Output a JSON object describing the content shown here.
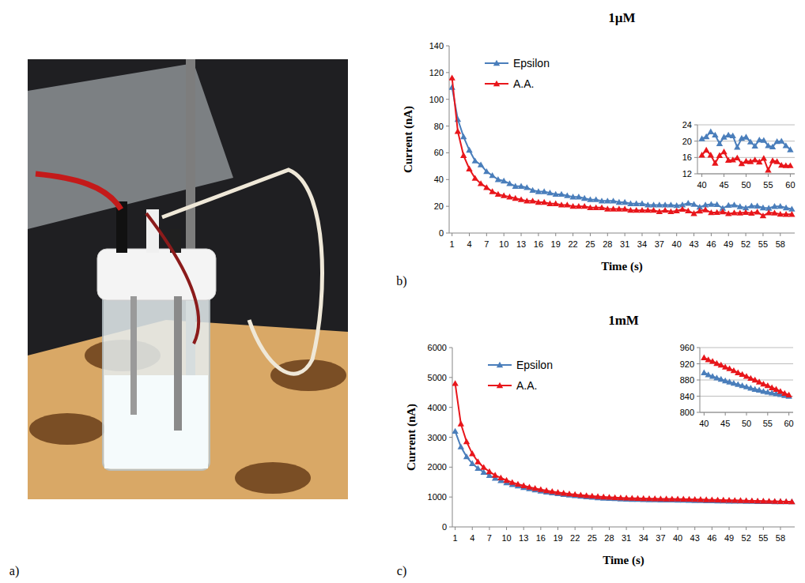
{
  "photo": {
    "label": "a)"
  },
  "chart_data": [
    {
      "type": "line",
      "panel_label": "b)",
      "title": "1µM",
      "x_label": "Time (s)",
      "y_label": "Current (nA)",
      "x": [
        1,
        2,
        3,
        4,
        5,
        6,
        7,
        8,
        9,
        10,
        11,
        12,
        13,
        14,
        15,
        16,
        17,
        18,
        19,
        20,
        21,
        22,
        23,
        24,
        25,
        26,
        27,
        28,
        29,
        30,
        31,
        32,
        33,
        34,
        35,
        36,
        37,
        38,
        39,
        40,
        41,
        42,
        43,
        44,
        45,
        46,
        47,
        48,
        49,
        50,
        51,
        52,
        53,
        54,
        55,
        56,
        57,
        58,
        59,
        60
      ],
      "xlim": [
        0.5,
        60.5
      ],
      "xticks": [
        1,
        4,
        7,
        10,
        13,
        16,
        19,
        22,
        25,
        28,
        31,
        34,
        37,
        40,
        43,
        46,
        49,
        52,
        55,
        58
      ],
      "ylim": [
        0,
        140
      ],
      "yticks": [
        0,
        20,
        40,
        60,
        80,
        100,
        120,
        140
      ],
      "grid": false,
      "legend": "top-left",
      "series": [
        {
          "name": "Epsilon",
          "color": "#4a7ebb",
          "marker": "triangle",
          "line_style": "solid",
          "values": [
            109,
            85,
            72,
            62,
            54,
            51,
            46,
            43,
            40,
            39,
            37,
            35,
            35,
            34,
            32,
            31,
            31,
            30,
            29,
            29,
            28,
            27,
            27,
            26,
            25,
            25,
            24,
            24,
            24,
            23,
            23,
            22,
            22,
            22,
            21,
            21,
            21,
            21,
            21,
            20.6,
            21.1,
            22.3,
            21.5,
            19.4,
            21.0,
            21.5,
            21.3,
            18.5,
            20.7,
            21.0,
            19.8,
            18.8,
            20.3,
            20.2,
            18.9,
            18.6,
            19.9,
            20.0,
            18.9,
            17.9
          ]
        },
        {
          "name": "A.A.",
          "color": "#e8161b",
          "marker": "triangle",
          "line_style": "solid",
          "values": [
            116,
            76,
            58,
            48,
            41,
            37,
            34,
            31,
            29,
            28,
            27,
            26,
            25,
            24,
            24,
            23,
            23,
            22,
            22,
            21,
            21,
            20,
            20,
            20,
            19,
            19,
            19,
            18,
            18,
            18,
            18,
            17,
            17,
            17,
            17,
            17,
            16,
            17,
            16,
            16.6,
            17.8,
            16.6,
            14.6,
            16.5,
            17.4,
            15.3,
            15.4,
            15.9,
            14.5,
            15.1,
            15.0,
            15.4,
            14.9,
            15.8,
            12.9,
            15.2,
            15.0,
            14.1,
            14.0,
            14.0
          ]
        }
      ],
      "inset": {
        "type": "line",
        "x": [
          40,
          41,
          42,
          43,
          44,
          45,
          46,
          47,
          48,
          49,
          50,
          51,
          52,
          53,
          54,
          55,
          56,
          57,
          58,
          59,
          60
        ],
        "xlim": [
          39,
          61
        ],
        "xticks": [
          40,
          45,
          50,
          55,
          60
        ],
        "ylim": [
          12,
          24
        ],
        "yticks": [
          12,
          16,
          20,
          24
        ],
        "grid": true,
        "series": [
          {
            "color": "#4a7ebb",
            "marker": "triangle",
            "line_style": "solid",
            "values": [
              20.6,
              21.1,
              22.3,
              21.5,
              19.4,
              21.0,
              21.5,
              21.3,
              18.5,
              20.7,
              21.0,
              19.8,
              18.8,
              20.3,
              20.2,
              18.9,
              18.6,
              19.9,
              20.0,
              18.9,
              17.9
            ]
          },
          {
            "color": "#e8161b",
            "marker": "triangle",
            "line_style": "solid",
            "values": [
              16.6,
              17.8,
              16.6,
              14.6,
              16.5,
              17.4,
              15.3,
              15.4,
              15.9,
              14.5,
              15.1,
              15.0,
              15.4,
              14.9,
              15.8,
              12.9,
              15.2,
              15.0,
              14.1,
              14.0,
              14.0
            ]
          }
        ]
      }
    },
    {
      "type": "line",
      "panel_label": "c)",
      "title": "1mM",
      "x_label": "Time (s)",
      "y_label": "Current (nA)",
      "x": [
        1,
        2,
        3,
        4,
        5,
        6,
        7,
        8,
        9,
        10,
        11,
        12,
        13,
        14,
        15,
        16,
        17,
        18,
        19,
        20,
        21,
        22,
        23,
        24,
        25,
        26,
        27,
        28,
        29,
        30,
        31,
        32,
        33,
        34,
        35,
        36,
        37,
        38,
        39,
        40,
        41,
        42,
        43,
        44,
        45,
        46,
        47,
        48,
        49,
        50,
        51,
        52,
        53,
        54,
        55,
        56,
        57,
        58,
        59,
        60
      ],
      "xlim": [
        0.5,
        60.5
      ],
      "xticks": [
        1,
        4,
        7,
        10,
        13,
        16,
        19,
        22,
        25,
        28,
        31,
        34,
        37,
        40,
        43,
        46,
        49,
        52,
        55,
        58
      ],
      "ylim": [
        0,
        6000
      ],
      "yticks": [
        0,
        1000,
        2000,
        3000,
        4000,
        5000,
        6000
      ],
      "grid": false,
      "legend": "top-left",
      "series": [
        {
          "name": "Epsilon",
          "color": "#4a7ebb",
          "marker": "triangle",
          "line_style": "solid",
          "values": [
            3200,
            2680,
            2350,
            2120,
            1960,
            1830,
            1720,
            1630,
            1550,
            1480,
            1420,
            1370,
            1320,
            1280,
            1240,
            1200,
            1170,
            1140,
            1115,
            1090,
            1065,
            1045,
            1025,
            1008,
            992,
            978,
            965,
            955,
            946,
            938,
            931,
            925,
            920,
            915,
            911,
            908,
            905,
            902,
            900,
            898,
            893,
            889,
            885,
            882,
            878,
            875,
            872,
            869,
            866,
            863,
            860,
            857,
            855,
            852,
            850,
            848,
            846,
            844,
            842,
            840
          ]
        },
        {
          "name": "A.A.",
          "color": "#e8161b",
          "marker": "triangle",
          "line_style": "solid",
          "values": [
            4800,
            3450,
            2850,
            2450,
            2180,
            1990,
            1850,
            1730,
            1640,
            1560,
            1490,
            1430,
            1380,
            1330,
            1290,
            1250,
            1215,
            1185,
            1155,
            1130,
            1105,
            1085,
            1065,
            1048,
            1032,
            1018,
            1005,
            993,
            982,
            973,
            966,
            960,
            955,
            950,
            946,
            943,
            940,
            938,
            936,
            935,
            930,
            926,
            921,
            917,
            912,
            908,
            903,
            898,
            894,
            889,
            884,
            880,
            875,
            870,
            866,
            861,
            857,
            852,
            847,
            843
          ]
        }
      ],
      "inset": {
        "type": "line",
        "x": [
          40,
          41,
          42,
          43,
          44,
          45,
          46,
          47,
          48,
          49,
          50,
          51,
          52,
          53,
          54,
          55,
          56,
          57,
          58,
          59,
          60
        ],
        "xlim": [
          39,
          61
        ],
        "xticks": [
          40,
          45,
          50,
          55,
          60
        ],
        "ylim": [
          800,
          960
        ],
        "yticks": [
          800,
          840,
          880,
          920,
          960
        ],
        "grid": true,
        "series": [
          {
            "color": "#4a7ebb",
            "marker": "triangle",
            "line_style": "solid",
            "values": [
              898,
              893,
              889,
              885,
              882,
              878,
              875,
              872,
              869,
              866,
              863,
              860,
              857,
              855,
              852,
              850,
              848,
              846,
              844,
              842,
              840
            ]
          },
          {
            "color": "#e8161b",
            "marker": "triangle",
            "line_style": "solid",
            "values": [
              935,
              930,
              926,
              921,
              917,
              912,
              908,
              903,
              898,
              894,
              889,
              884,
              880,
              875,
              870,
              866,
              861,
              857,
              852,
              847,
              843
            ]
          }
        ]
      }
    }
  ]
}
